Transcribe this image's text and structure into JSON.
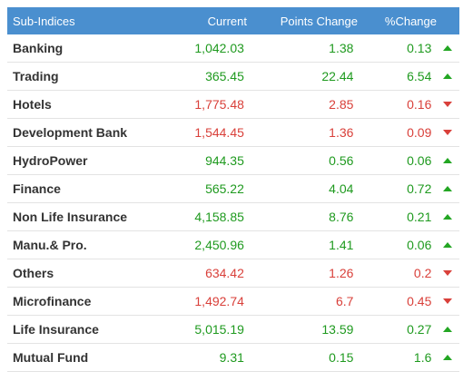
{
  "table": {
    "headers": {
      "name": "Sub-Indices",
      "current": "Current",
      "points": "Points Change",
      "percent": "%Change"
    },
    "rows": [
      {
        "name": "Banking",
        "current": "1,042.03",
        "points": "1.38",
        "percent": "0.13",
        "direction": "up"
      },
      {
        "name": "Trading",
        "current": "365.45",
        "points": "22.44",
        "percent": "6.54",
        "direction": "up"
      },
      {
        "name": "Hotels",
        "current": "1,775.48",
        "points": "2.85",
        "percent": "0.16",
        "direction": "down"
      },
      {
        "name": "Development Bank",
        "current": "1,544.45",
        "points": "1.36",
        "percent": "0.09",
        "direction": "down"
      },
      {
        "name": "HydroPower",
        "current": "944.35",
        "points": "0.56",
        "percent": "0.06",
        "direction": "up"
      },
      {
        "name": "Finance",
        "current": "565.22",
        "points": "4.04",
        "percent": "0.72",
        "direction": "up"
      },
      {
        "name": "Non Life Insurance",
        "current": "4,158.85",
        "points": "8.76",
        "percent": "0.21",
        "direction": "up"
      },
      {
        "name": "Manu.& Pro.",
        "current": "2,450.96",
        "points": "1.41",
        "percent": "0.06",
        "direction": "up"
      },
      {
        "name": "Others",
        "current": "634.42",
        "points": "1.26",
        "percent": "0.2",
        "direction": "down"
      },
      {
        "name": "Microfinance",
        "current": "1,492.74",
        "points": "6.7",
        "percent": "0.45",
        "direction": "down"
      },
      {
        "name": "Life Insurance",
        "current": "5,015.19",
        "points": "13.59",
        "percent": "0.27",
        "direction": "up"
      },
      {
        "name": "Mutual Fund",
        "current": "9.31",
        "points": "0.15",
        "percent": "1.6",
        "direction": "up"
      }
    ]
  },
  "colors": {
    "header_bg": "#4a8fcf",
    "up": "#1f9a1f",
    "down": "#d9403a"
  },
  "icons": {
    "up": "triangle-up-icon",
    "down": "triangle-down-icon"
  }
}
